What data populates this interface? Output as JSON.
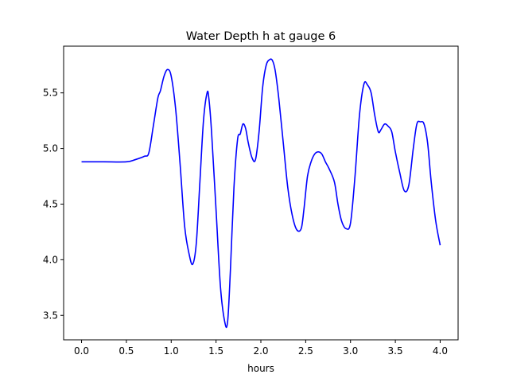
{
  "chart_data": {
    "type": "line",
    "title": "Water Depth h at gauge 6",
    "xlabel": "hours",
    "ylabel": "",
    "xlim": [
      -0.2,
      4.2
    ],
    "ylim": [
      3.28,
      5.92
    ],
    "xticks": [
      0.0,
      0.5,
      1.0,
      1.5,
      2.0,
      2.5,
      3.0,
      3.5,
      4.0
    ],
    "xtick_labels": [
      "0.0",
      "0.5",
      "1.0",
      "1.5",
      "2.0",
      "2.5",
      "3.0",
      "3.5",
      "4.0"
    ],
    "yticks": [
      3.5,
      4.0,
      4.5,
      5.0,
      5.5
    ],
    "ytick_labels": [
      "3.5",
      "4.0",
      "4.5",
      "5.0",
      "5.5"
    ],
    "grid": false,
    "series": [
      {
        "color": "#0000ff",
        "x": [
          0.0,
          0.25,
          0.5,
          0.6,
          0.7,
          0.75,
          0.8,
          0.85,
          0.88,
          0.92,
          0.96,
          1.0,
          1.05,
          1.1,
          1.15,
          1.2,
          1.24,
          1.28,
          1.32,
          1.36,
          1.4,
          1.42,
          1.45,
          1.5,
          1.55,
          1.6,
          1.63,
          1.66,
          1.7,
          1.74,
          1.77,
          1.8,
          1.83,
          1.86,
          1.9,
          1.94,
          1.98,
          2.02,
          2.06,
          2.1,
          2.13,
          2.16,
          2.2,
          2.25,
          2.3,
          2.35,
          2.4,
          2.45,
          2.48,
          2.52,
          2.56,
          2.6,
          2.64,
          2.68,
          2.72,
          2.76,
          2.82,
          2.86,
          2.9,
          2.95,
          3.0,
          3.05,
          3.1,
          3.15,
          3.19,
          3.23,
          3.27,
          3.31,
          3.34,
          3.38,
          3.42,
          3.46,
          3.5,
          3.55,
          3.6,
          3.65,
          3.7,
          3.74,
          3.78,
          3.82,
          3.86,
          3.9,
          3.95,
          4.0
        ],
        "y": [
          4.88,
          4.88,
          4.88,
          4.9,
          4.93,
          4.96,
          5.2,
          5.45,
          5.52,
          5.65,
          5.71,
          5.65,
          5.35,
          4.85,
          4.3,
          4.05,
          3.96,
          4.15,
          4.7,
          5.25,
          5.5,
          5.45,
          5.15,
          4.45,
          3.75,
          3.43,
          3.45,
          3.9,
          4.65,
          5.08,
          5.13,
          5.22,
          5.18,
          5.05,
          4.92,
          4.9,
          5.15,
          5.55,
          5.75,
          5.8,
          5.79,
          5.7,
          5.45,
          5.05,
          4.65,
          4.4,
          4.27,
          4.28,
          4.45,
          4.75,
          4.88,
          4.95,
          4.97,
          4.95,
          4.88,
          4.82,
          4.7,
          4.5,
          4.35,
          4.28,
          4.33,
          4.75,
          5.3,
          5.58,
          5.57,
          5.5,
          5.3,
          5.15,
          5.17,
          5.22,
          5.2,
          5.15,
          4.97,
          4.78,
          4.62,
          4.67,
          5.0,
          5.22,
          5.24,
          5.22,
          5.05,
          4.7,
          4.35,
          4.13
        ]
      }
    ]
  }
}
